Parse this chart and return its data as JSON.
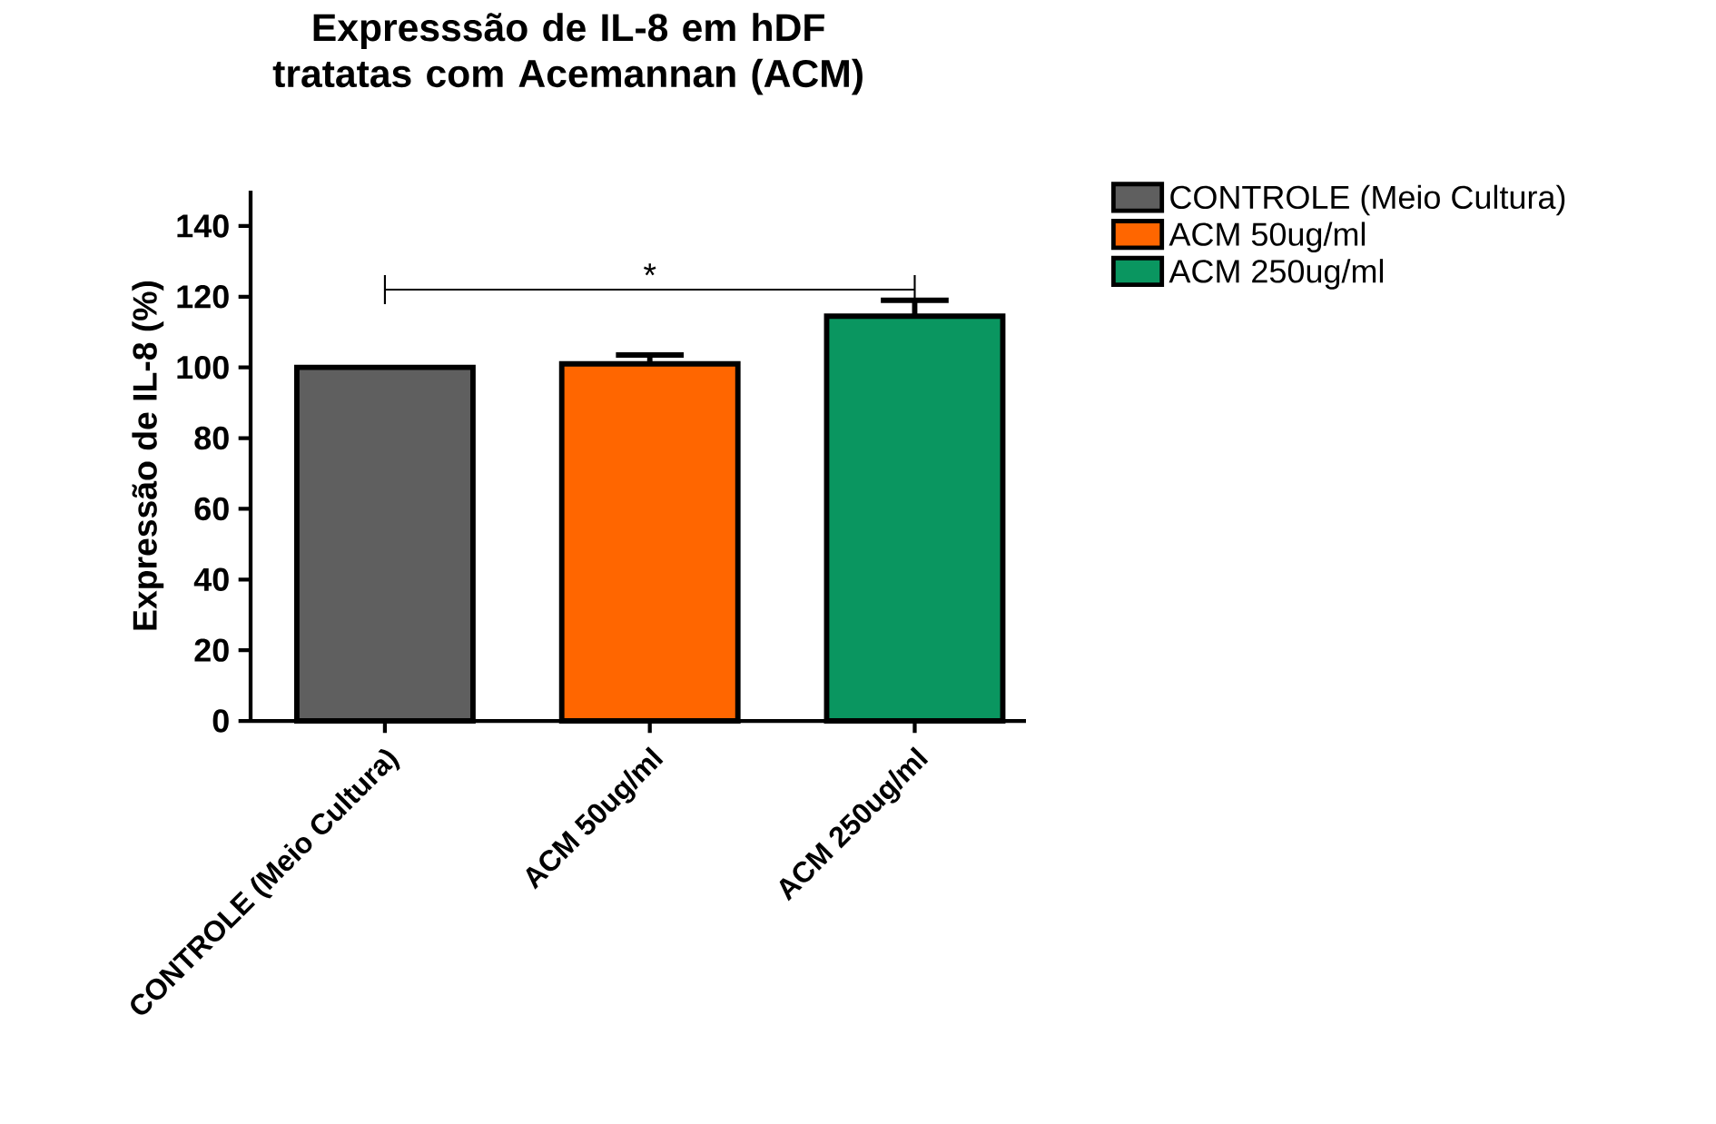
{
  "chart_data": {
    "type": "bar",
    "title": "Expresssão de IL-8 em hDF tratatas com Acemannan (ACM)",
    "ylabel": "Expressão de IL-8 (%)",
    "categories": [
      "CONTROLE (Meio Cultura)",
      "ACM 50ug/ml",
      "ACM 250ug/ml"
    ],
    "series": [
      {
        "name": "CONTROLE (Meio Cultura)",
        "color": "#5f5f5f",
        "values": [
          100,
          null,
          null
        ]
      },
      {
        "name": "ACM 50ug/ml",
        "color": "#ff6600",
        "values": [
          null,
          101,
          null
        ],
        "errors": [
          null,
          [
            101,
            103.5
          ],
          null
        ]
      },
      {
        "name": "ACM 250ug/ml",
        "color": "#0a9660",
        "values": [
          null,
          null,
          114.5
        ],
        "errors": [
          null,
          null,
          [
            114.5,
            119
          ]
        ]
      }
    ],
    "ylim": [
      0,
      150
    ],
    "yticks": [
      0,
      20,
      40,
      60,
      80,
      100,
      120,
      140
    ],
    "annotations": [
      "*"
    ],
    "legend": "top right",
    "grid": false
  }
}
